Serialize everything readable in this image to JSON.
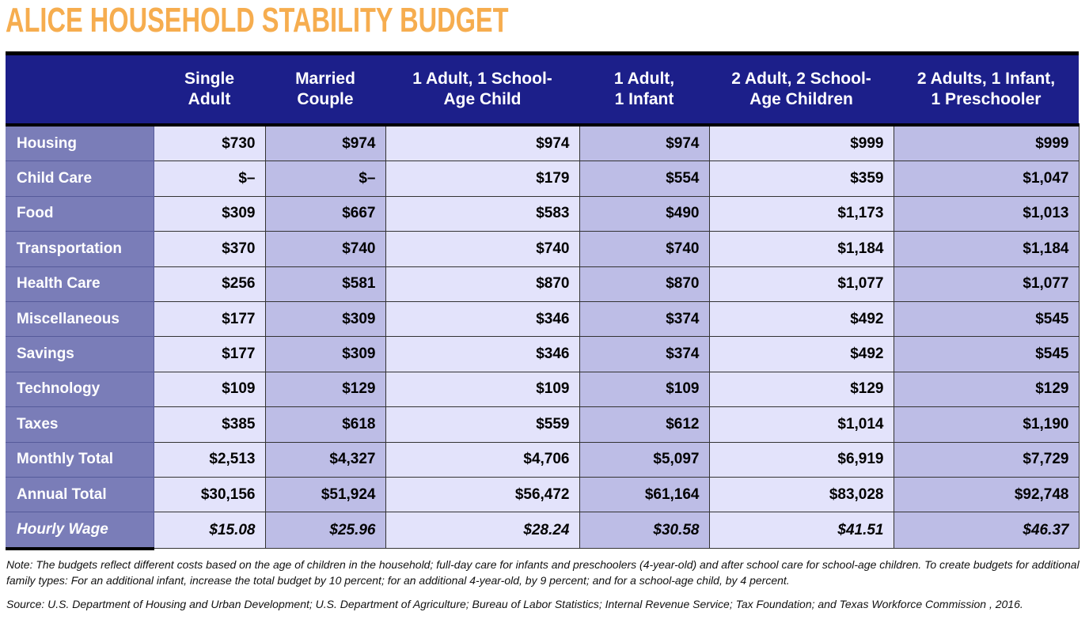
{
  "title": "ALICE HOUSEHOLD STABILITY BUDGET",
  "columns": [
    {
      "line1": "Single",
      "line2": "Adult"
    },
    {
      "line1": "Married",
      "line2": "Couple"
    },
    {
      "line1": "1 Adult, 1 School-",
      "line2": "Age Child"
    },
    {
      "line1": "1 Adult,",
      "line2": "1 Infant"
    },
    {
      "line1": "2 Adult, 2 School-",
      "line2": "Age Children"
    },
    {
      "line1": "2 Adults, 1 Infant,",
      "line2": "1 Preschooler"
    }
  ],
  "rows": [
    {
      "label": "Housing",
      "values": [
        "$730",
        "$974",
        "$974",
        "$974",
        "$999",
        "$999"
      ]
    },
    {
      "label": "Child Care",
      "values": [
        "$–",
        "$–",
        "$179",
        "$554",
        "$359",
        "$1,047"
      ]
    },
    {
      "label": "Food",
      "values": [
        "$309",
        "$667",
        "$583",
        "$490",
        "$1,173",
        "$1,013"
      ]
    },
    {
      "label": "Transportation",
      "values": [
        "$370",
        "$740",
        "$740",
        "$740",
        "$1,184",
        "$1,184"
      ]
    },
    {
      "label": "Health Care",
      "values": [
        "$256",
        "$581",
        "$870",
        "$870",
        "$1,077",
        "$1,077"
      ]
    },
    {
      "label": "Miscellaneous",
      "values": [
        "$177",
        "$309",
        "$346",
        "$374",
        "$492",
        "$545"
      ]
    },
    {
      "label": "Savings",
      "values": [
        "$177",
        "$309",
        "$346",
        "$374",
        "$492",
        "$545"
      ]
    },
    {
      "label": "Technology",
      "values": [
        "$109",
        "$129",
        "$109",
        "$109",
        "$129",
        "$129"
      ]
    },
    {
      "label": "Taxes",
      "values": [
        "$385",
        "$618",
        "$559",
        "$612",
        "$1,014",
        "$1,190"
      ]
    },
    {
      "label": "Monthly Total",
      "values": [
        "$2,513",
        "$4,327",
        "$4,706",
        "$5,097",
        "$6,919",
        "$7,729"
      ]
    },
    {
      "label": "Annual Total",
      "values": [
        "$30,156",
        "$51,924",
        "$56,472",
        "$61,164",
        "$83,028",
        "$92,748"
      ]
    },
    {
      "label": "Hourly Wage",
      "values": [
        "$15.08",
        "$25.96",
        "$28.24",
        "$30.58",
        "$41.51",
        "$46.37"
      ]
    }
  ],
  "note": "Note: The budgets reflect different costs based on the age of children in the household; full-day care for infants and preschoolers (4-year-old) and after school care for school-age children. To create budgets for additional family types: For an additional infant, increase the total budget by 10 percent; for an additional 4-year-old, by 9 percent; and for a school-age child, by 4 percent.",
  "source": "Source: U.S. Department of Housing and Urban Development; U.S. Department of Agriculture; Bureau of Labor Statistics; Internal Revenue Service; Tax Foundation; and Texas Workforce Commission , 2016."
}
